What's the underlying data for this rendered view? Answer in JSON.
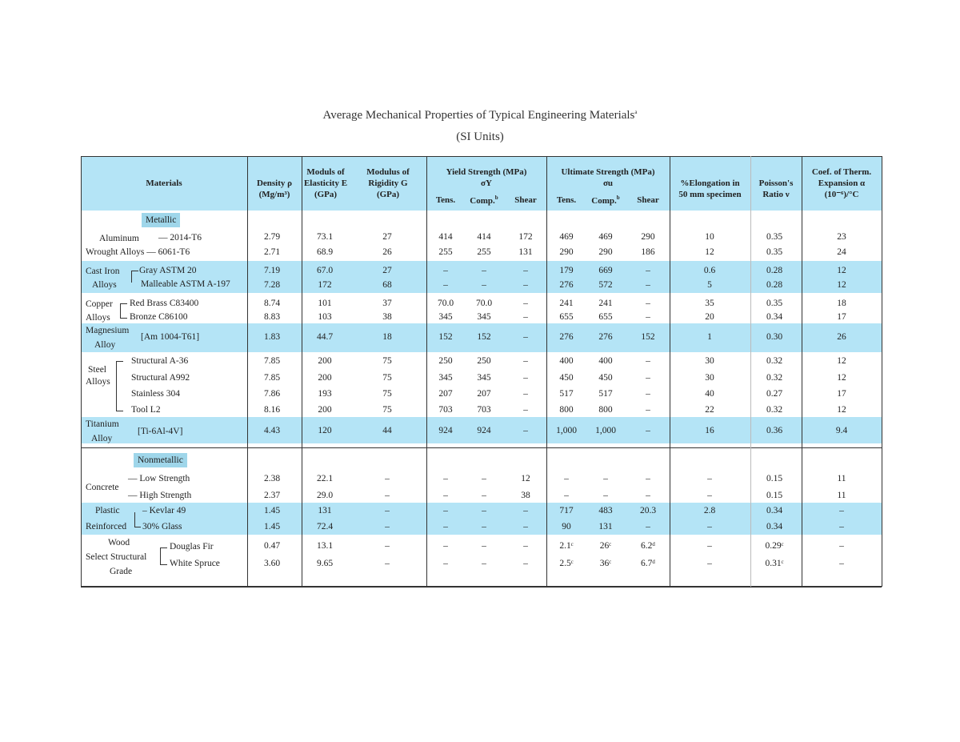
{
  "title": "Average Mechanical Properties of Typical Engineering Materials",
  "title_sup": "a",
  "subtitle": "(SI Units)",
  "colors": {
    "header_bg": "#b4e4f6",
    "band_bg": "#b4e4f6",
    "tag_bg": "#9fd6ea"
  },
  "headers": {
    "materials": "Materials",
    "density": [
      "Density ρ",
      "(Mg/m³)"
    ],
    "elasticity": [
      "Moduls of",
      "Elasticity E",
      "(GPa)"
    ],
    "rigidity": [
      "Modulus of",
      "Rigidity G",
      "(GPa)"
    ],
    "yield": [
      "Yield Strength (MPa)",
      "σY"
    ],
    "ultimate": [
      "Ultimate Strength (MPa)",
      "σu"
    ],
    "sub": {
      "tens": "Tens.",
      "comp": "Comp.",
      "comp_sup": "b",
      "shear": "Shear"
    },
    "elongation": [
      "%Elongation in",
      "50 mm specimen"
    ],
    "poisson": [
      "Poisson's",
      "Ratio ν"
    ],
    "thermal": [
      "Coef. of Therm.",
      "Expansion α",
      "(10⁻⁶)/°C"
    ]
  },
  "sections": {
    "metallic": "Metallic",
    "nonmetallic": "Nonmetallic"
  },
  "materials": {
    "aluminum": {
      "group": "Aluminum",
      "group2": "Wrought Alloys",
      "subs": [
        "2014-T6",
        "6061-T6"
      ]
    },
    "cast_iron": {
      "group": "Cast Iron",
      "group2": "Alloys",
      "subs": [
        "Gray ASTM 20",
        "Malleable ASTM A-197"
      ]
    },
    "copper": {
      "group": "Copper",
      "group2": "Alloys",
      "subs": [
        "Red Brass C83400",
        "Bronze C86100"
      ]
    },
    "magnesium": {
      "group": "Magnesium",
      "group2": "Alloy",
      "subs": [
        "[Am 1004-T61]"
      ]
    },
    "steel": {
      "group": "Steel",
      "group2": "Alloys",
      "subs": [
        "Structural A-36",
        "Structural A992",
        "Stainless 304",
        "Tool L2"
      ]
    },
    "titanium": {
      "group": "Titanium",
      "group2": "Alloy",
      "subs": [
        "[Ti-6Al-4V]"
      ]
    },
    "concrete": {
      "group": "Concrete",
      "subs": [
        "Low Strength",
        "High Strength"
      ]
    },
    "plastic": {
      "group": "Plastic",
      "group2": "Reinforced",
      "subs": [
        "Kevlar 49",
        "30% Glass"
      ]
    },
    "wood": {
      "group": "Wood",
      "group2": "Select Structural",
      "group3": "Grade",
      "subs": [
        "Douglas Fir",
        "White Spruce"
      ]
    }
  },
  "rows": [
    [
      "2.79",
      "73.1",
      "27",
      "414",
      "414",
      "172",
      "469",
      "469",
      "290",
      "10",
      "0.35",
      "23"
    ],
    [
      "2.71",
      "68.9",
      "26",
      "255",
      "255",
      "131",
      "290",
      "290",
      "186",
      "12",
      "0.35",
      "24"
    ],
    [
      "7.19",
      "67.0",
      "27",
      "–",
      "–",
      "–",
      "179",
      "669",
      "–",
      "0.6",
      "0.28",
      "12"
    ],
    [
      "7.28",
      "172",
      "68",
      "–",
      "–",
      "–",
      "276",
      "572",
      "–",
      "5",
      "0.28",
      "12"
    ],
    [
      "8.74",
      "101",
      "37",
      "70.0",
      "70.0",
      "–",
      "241",
      "241",
      "–",
      "35",
      "0.35",
      "18"
    ],
    [
      "8.83",
      "103",
      "38",
      "345",
      "345",
      "–",
      "655",
      "655",
      "–",
      "20",
      "0.34",
      "17"
    ],
    [
      "1.83",
      "44.7",
      "18",
      "152",
      "152",
      "–",
      "276",
      "276",
      "152",
      "1",
      "0.30",
      "26"
    ],
    [
      "7.85",
      "200",
      "75",
      "250",
      "250",
      "–",
      "400",
      "400",
      "–",
      "30",
      "0.32",
      "12"
    ],
    [
      "7.85",
      "200",
      "75",
      "345",
      "345",
      "–",
      "450",
      "450",
      "–",
      "30",
      "0.32",
      "12"
    ],
    [
      "7.86",
      "193",
      "75",
      "207",
      "207",
      "–",
      "517",
      "517",
      "–",
      "40",
      "0.27",
      "17"
    ],
    [
      "8.16",
      "200",
      "75",
      "703",
      "703",
      "–",
      "800",
      "800",
      "–",
      "22",
      "0.32",
      "12"
    ],
    [
      "4.43",
      "120",
      "44",
      "924",
      "924",
      "–",
      "1,000",
      "1,000",
      "–",
      "16",
      "0.36",
      "9.4"
    ],
    [
      "2.38",
      "22.1",
      "–",
      "–",
      "–",
      "12",
      "–",
      "–",
      "–",
      "–",
      "0.15",
      "11"
    ],
    [
      "2.37",
      "29.0",
      "–",
      "–",
      "–",
      "38",
      "–",
      "–",
      "–",
      "–",
      "0.15",
      "11"
    ],
    [
      "1.45",
      "131",
      "–",
      "–",
      "–",
      "–",
      "717",
      "483",
      "20.3",
      "2.8",
      "0.34",
      "–"
    ],
    [
      "1.45",
      "72.4",
      "–",
      "–",
      "–",
      "–",
      "90",
      "131",
      "–",
      "–",
      "0.34",
      "–"
    ],
    [
      "0.47",
      "13.1",
      "–",
      "–",
      "–",
      "–",
      "2.1ᶜ",
      "26ᶜ",
      "6.2ᵈ",
      "–",
      "0.29ᶜ",
      "–"
    ],
    [
      "3.60",
      "9.65",
      "–",
      "–",
      "–",
      "–",
      "2.5ᶜ",
      "36ᶜ",
      "6.7ᵈ",
      "–",
      "0.31ᶜ",
      "–"
    ]
  ]
}
